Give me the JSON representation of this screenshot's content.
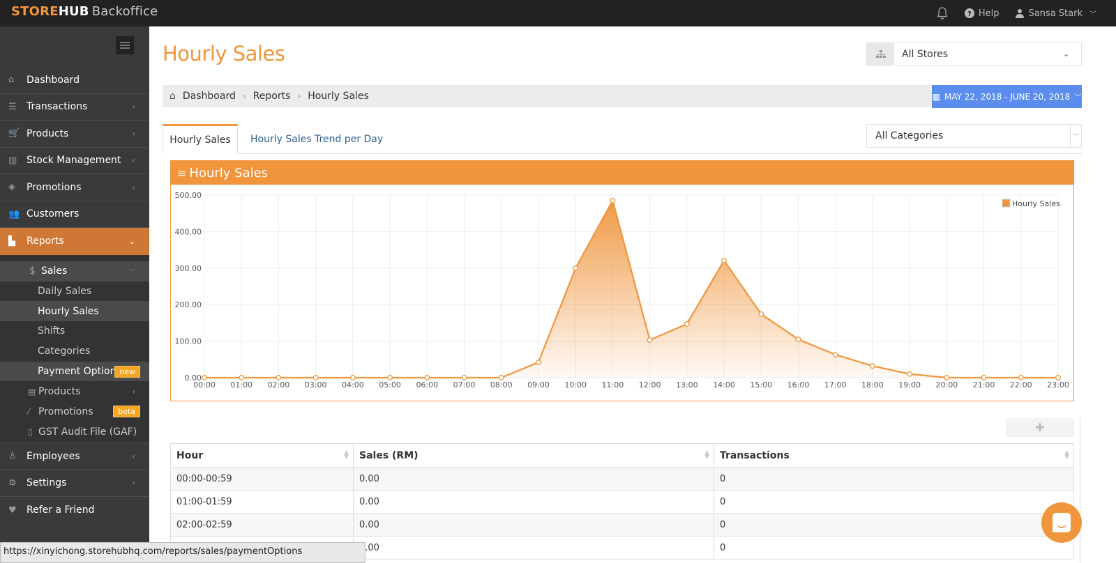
{
  "topbar": {
    "brand_part1": "STORE",
    "brand_part2": "HUB",
    "product": "Backoffice",
    "help_label": "Help",
    "user_name": "Sansa Stark"
  },
  "sidebar": {
    "items": [
      {
        "label": "Dashboard",
        "icon": "home-icon",
        "glyph": "⌂"
      },
      {
        "label": "Transactions",
        "icon": "list-icon",
        "glyph": "☰"
      },
      {
        "label": "Products",
        "icon": "cart-icon",
        "glyph": "🛒"
      },
      {
        "label": "Stock Management",
        "icon": "barcode-icon",
        "glyph": "▥"
      },
      {
        "label": "Promotions",
        "icon": "tags-icon",
        "glyph": "◈"
      },
      {
        "label": "Customers",
        "icon": "users-icon",
        "glyph": "👥"
      },
      {
        "label": "Reports",
        "icon": "bar-chart-icon",
        "glyph": "▙"
      }
    ],
    "reports_sub": {
      "sales_label": "Sales",
      "sales_items": [
        {
          "label": "Daily Sales"
        },
        {
          "label": "Hourly Sales"
        },
        {
          "label": "Shifts"
        },
        {
          "label": "Categories"
        },
        {
          "label": "Payment Options",
          "badge": "new"
        }
      ],
      "products_label": "Products",
      "promotions_label": "Promotions",
      "promotions_badge": "beta",
      "gst_label": "GST Audit File (GAF)"
    },
    "bottom_items": [
      {
        "label": "Employees"
      },
      {
        "label": "Settings"
      },
      {
        "label": "Refer a Friend"
      }
    ]
  },
  "page": {
    "title": "Hourly Sales",
    "store_select": "All Stores",
    "breadcrumb": [
      "Dashboard",
      "Reports",
      "Hourly Sales"
    ],
    "date_range": "MAY 22, 2018 - JUNE 20, 2018",
    "tabs": [
      "Hourly Sales",
      "Hourly Sales Trend per Day"
    ],
    "category_select": "All Categories",
    "panel_title": "Hourly Sales"
  },
  "chart_data": {
    "type": "area",
    "title": "Hourly Sales",
    "legend": [
      "Hourly Sales"
    ],
    "legend_position": "top-right",
    "grid": true,
    "ylim": [
      0,
      500
    ],
    "yticks": [
      "0.00",
      "100.00",
      "200.00",
      "300.00",
      "400.00",
      "500.00"
    ],
    "categories": [
      "00:00",
      "01:00",
      "02:00",
      "03:00",
      "04:00",
      "05:00",
      "06:00",
      "07:00",
      "08:00",
      "09:00",
      "10:00",
      "11:00",
      "12:00",
      "13:00",
      "14:00",
      "15:00",
      "16:00",
      "17:00",
      "18:00",
      "19:00",
      "20:00",
      "21:00",
      "22:00",
      "23:00"
    ],
    "series": [
      {
        "name": "Hourly Sales",
        "color": "#f0953c",
        "values": [
          0,
          0,
          0,
          0,
          0,
          0,
          0,
          0,
          0,
          42,
          300,
          485,
          103,
          147,
          321,
          174,
          105,
          63,
          32,
          10,
          0,
          0,
          0,
          0
        ]
      }
    ]
  },
  "table": {
    "columns": [
      "Hour",
      "Sales (RM)",
      "Transactions"
    ],
    "rows": [
      [
        "00:00-00:59",
        "0.00",
        "0"
      ],
      [
        "01:00-01:59",
        "0.00",
        "0"
      ],
      [
        "02:00-02:59",
        "0.00",
        "0"
      ],
      [
        "",
        "0.00",
        "0"
      ]
    ]
  },
  "status_url": "https://xinyichong.storehubhq.com/reports/sales/paymentOptions",
  "colors": {
    "accent": "#f0953c",
    "sidebar_active": "#cf7835",
    "date_button": "#5b8def"
  }
}
